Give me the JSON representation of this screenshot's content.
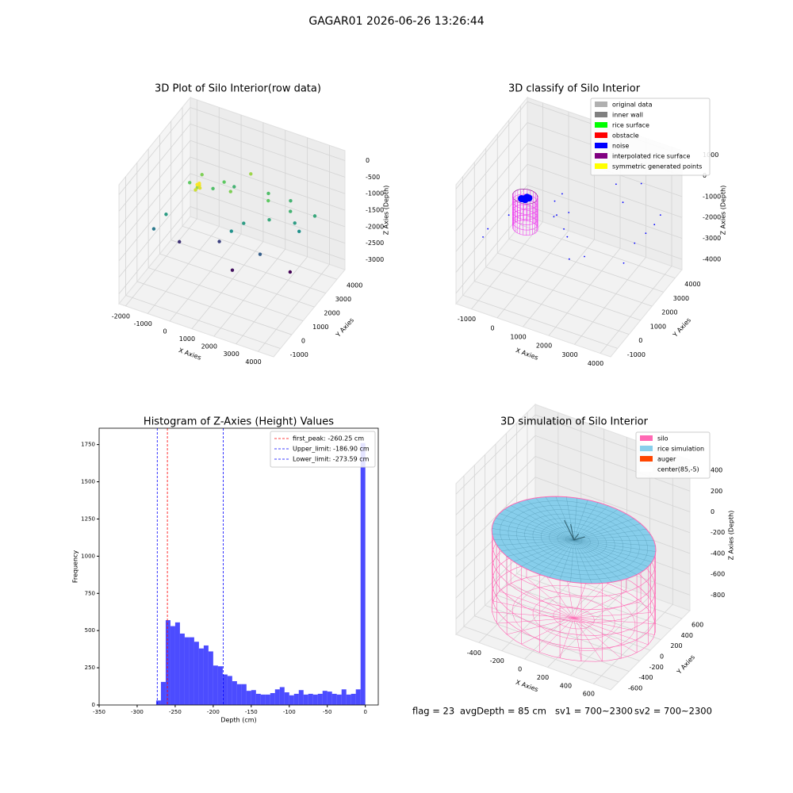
{
  "suptitle": "GAGAR01 2026-06-26 13:26:44",
  "footer": [
    "flag = 23",
    "avgDepth = 85 cm",
    "sv1 = 700~2300",
    "sv2 = 700~2300"
  ],
  "chart_data": [
    {
      "type": "scatter3d",
      "title": "3D Plot of Silo Interior(row data)",
      "xlabel": "X Axies",
      "ylabel": "Y Axies",
      "zlabel": "Z Axies (Depth)",
      "xlim": [
        -2300,
        4700
      ],
      "ylim": [
        -1600,
        4700
      ],
      "zlim": [
        -3300,
        300
      ],
      "xticks": [
        -2000,
        -1000,
        0,
        1000,
        2000,
        3000,
        4000
      ],
      "yticks": [
        -1000,
        0,
        1000,
        2000,
        3000,
        4000
      ],
      "zticks": [
        0,
        -500,
        -1000,
        -1500,
        -2000,
        -2500,
        -3000
      ],
      "cmap": "viridis",
      "x": [
        -1800,
        -1500,
        -1200,
        -900,
        -600,
        -300,
        0,
        300,
        600,
        900,
        1200,
        1500,
        1800,
        2100,
        2400,
        2700,
        3000,
        3300,
        3600,
        3900,
        -1000,
        500,
        1500,
        2500,
        3500,
        -400,
        -350,
        -300,
        -450,
        -380
      ],
      "y": [
        500,
        1000,
        2500,
        3000,
        2000,
        2800,
        3200,
        3500,
        2600,
        3800,
        1500,
        2000,
        3600,
        3000,
        2500,
        3800,
        3200,
        3000,
        2800,
        3600,
        1200,
        1800,
        1000,
        1500,
        2200,
        1600,
        1700,
        1650,
        1550,
        1750
      ],
      "z": [
        -1800,
        -1500,
        -1100,
        -1000,
        -900,
        -1200,
        -1100,
        -1300,
        -1000,
        -900,
        -1600,
        -1500,
        -1200,
        -1100,
        -1400,
        -1300,
        -1300,
        -1500,
        -1600,
        -1400,
        -2300,
        -2200,
        -2500,
        -2000,
        -2600,
        -600,
        -650,
        -700,
        -750,
        -620
      ]
    },
    {
      "type": "classify3d",
      "title": "3D classify of Silo Interior",
      "xlabel": "X Axies",
      "ylabel": "Y Axies",
      "zlabel": "Z Axies (Depth)",
      "xlim": [
        -1600,
        4400
      ],
      "ylim": [
        -1600,
        4600
      ],
      "zlim": [
        -4500,
        1200
      ],
      "xticks": [
        -1000,
        0,
        1000,
        2000,
        3000,
        4000
      ],
      "yticks": [
        -1000,
        0,
        1000,
        2000,
        3000,
        4000
      ],
      "zticks": [
        1000,
        0,
        -1000,
        -2000,
        -3000,
        -4000
      ],
      "legend": [
        {
          "name": "original data",
          "color": "#b0b0b0"
        },
        {
          "name": "inner wall",
          "color": "#808080"
        },
        {
          "name": "rice surface",
          "color": "#00ff00"
        },
        {
          "name": "obstacle",
          "color": "#ff0000"
        },
        {
          "name": "noise",
          "color": "#0000ff"
        },
        {
          "name": "interpolated rice surface",
          "color": "#800080"
        },
        {
          "name": "symmetric generated points",
          "color": "#ffff00"
        }
      ],
      "noise": {
        "color": "#0000ff",
        "x": [
          -1400,
          -1300,
          -800,
          400,
          500,
          600,
          700,
          800,
          900,
          1200,
          1500,
          2000,
          2200,
          2600,
          3000,
          3300,
          3500,
          3800,
          4000,
          4100,
          -350,
          -250,
          -300,
          -200,
          -400
        ],
        "y": [
          300,
          500,
          1200,
          2500,
          2200,
          2700,
          2000,
          2400,
          2600,
          1800,
          1300,
          1500,
          3800,
          3500,
          4200,
          2000,
          2500,
          2800,
          3100,
          3400,
          1450,
          1550,
          1500,
          1600,
          1400
        ],
        "z": [
          -2500,
          -2200,
          -1800,
          -1500,
          -2000,
          -1200,
          -1700,
          -2600,
          -1900,
          -2400,
          -3000,
          -2800,
          -800,
          -1300,
          -700,
          -2900,
          -2200,
          -1800,
          -1500,
          -1200,
          -1000,
          -950,
          -1050,
          -1000,
          -980
        ]
      },
      "cylinder": {
        "center": [
          -300,
          1500
        ],
        "radius": 450,
        "zlim": [
          -2400,
          -900
        ],
        "color": "#ee44ee",
        "top_color": "#800080"
      }
    },
    {
      "type": "histogram",
      "title": "Histogram of Z-Axies (Height) Values",
      "xlabel": "Depth (cm)",
      "ylabel": "Frequency",
      "bins": [
        -275,
        -268.75,
        -262.5,
        -256.25,
        -250,
        -243.75,
        -237.5,
        -231.25,
        -225,
        -218.75,
        -212.5,
        -206.25,
        -200,
        -193.75,
        -187.5,
        -181.25,
        -175,
        -168.75,
        -162.5,
        -156.25,
        -150,
        -143.75,
        -137.5,
        -131.25,
        -125,
        -118.75,
        -112.5,
        -106.25,
        -100,
        -93.75,
        -87.5,
        -81.25,
        -75,
        -68.75,
        -62.5,
        -56.25,
        -50,
        -43.75,
        -37.5,
        -31.25,
        -25,
        -18.75,
        -12.5,
        -6.25,
        0
      ],
      "values": [
        30,
        155,
        570,
        530,
        555,
        480,
        455,
        455,
        425,
        380,
        400,
        360,
        265,
        260,
        205,
        195,
        160,
        140,
        140,
        95,
        100,
        75,
        70,
        70,
        80,
        105,
        120,
        85,
        65,
        75,
        100,
        70,
        75,
        70,
        75,
        95,
        90,
        75,
        70,
        105,
        70,
        75,
        105,
        1760
      ],
      "color": "#0000ff",
      "alpha": 0.7,
      "xlim": [
        -350,
        17
      ],
      "ylim": [
        0,
        1860
      ],
      "xticks": [
        -350,
        -300,
        -250,
        -200,
        -150,
        -100,
        -50,
        0
      ],
      "yticks": [
        0,
        250,
        500,
        750,
        1000,
        1250,
        1500,
        1750
      ],
      "lines": [
        {
          "name": "first_peak: -260.25 cm",
          "value": -260.25,
          "color": "#ff0000"
        },
        {
          "name": "Upper_limit: -186.90 cm",
          "value": -186.9,
          "color": "#0000ff"
        },
        {
          "name": "Lower_limit: -273.59 cm",
          "value": -273.59,
          "color": "#0000ff"
        }
      ],
      "legend_position": "upper right"
    },
    {
      "type": "silo3d",
      "title": "3D simulation of Silo Interior",
      "xlabel": "X Axies",
      "ylabel": "Y Axies",
      "zlabel": "Z Axies (Depth)",
      "xlim": [
        -600,
        750
      ],
      "ylim": [
        -750,
        750
      ],
      "zlim": [
        -950,
        500
      ],
      "xticks": [
        -400,
        -200,
        0,
        200,
        400,
        600
      ],
      "yticks": [
        -600,
        -400,
        -200,
        0,
        200,
        400,
        600
      ],
      "zticks": [
        400,
        200,
        0,
        -200,
        -400,
        -600,
        -800
      ],
      "legend": [
        {
          "name": "silo",
          "color": "#ff69b4"
        },
        {
          "name": "rice simulation",
          "color": "#87ceeb"
        },
        {
          "name": "auger",
          "color": "#ff4500"
        },
        {
          "name": "center(85,-5)",
          "color": "#ffffff"
        }
      ],
      "silo": {
        "center": [
          85,
          -5
        ],
        "radius": 650,
        "zlim": [
          -900,
          -150
        ],
        "color": "#ff69b4"
      },
      "rice": {
        "z": -150,
        "color": "#87ceeb",
        "edge": "#4a8ea8"
      }
    }
  ]
}
